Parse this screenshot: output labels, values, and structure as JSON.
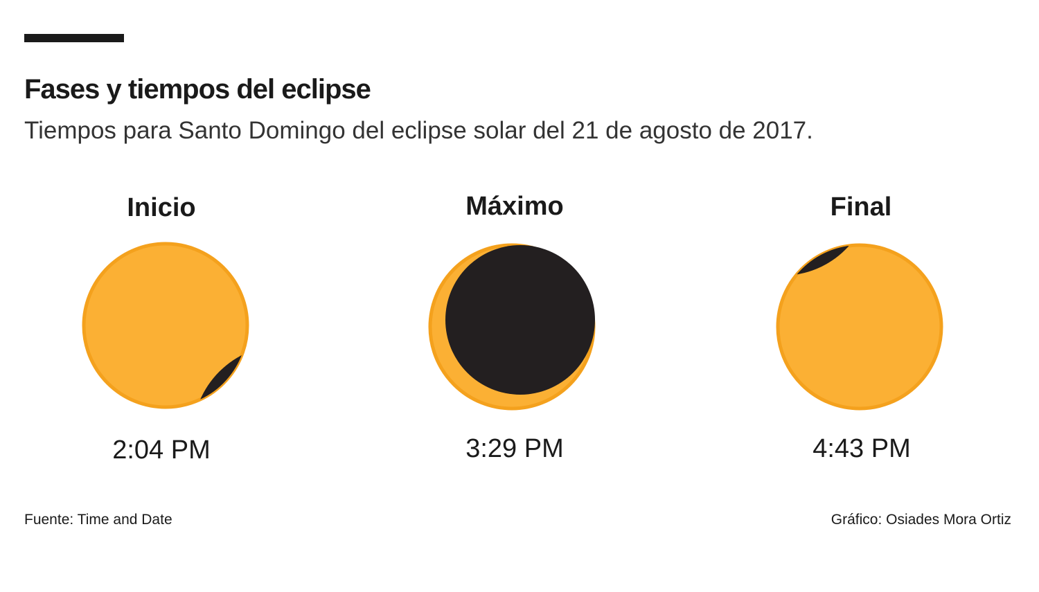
{
  "header": {
    "title": "Fases y tiempos del eclipse",
    "subtitle": "Tiempos para Santo Domingo del eclipse solar del 21 de agosto de 2017."
  },
  "phases": [
    {
      "label": "Inicio",
      "time": "2:04 PM"
    },
    {
      "label": "Máximo",
      "time": "3:29 PM"
    },
    {
      "label": "Final",
      "time": "4:43 PM"
    }
  ],
  "footer": {
    "source": "Fuente: Time and Date",
    "credit": "Gráfico: Osiades Mora Ortiz"
  }
}
